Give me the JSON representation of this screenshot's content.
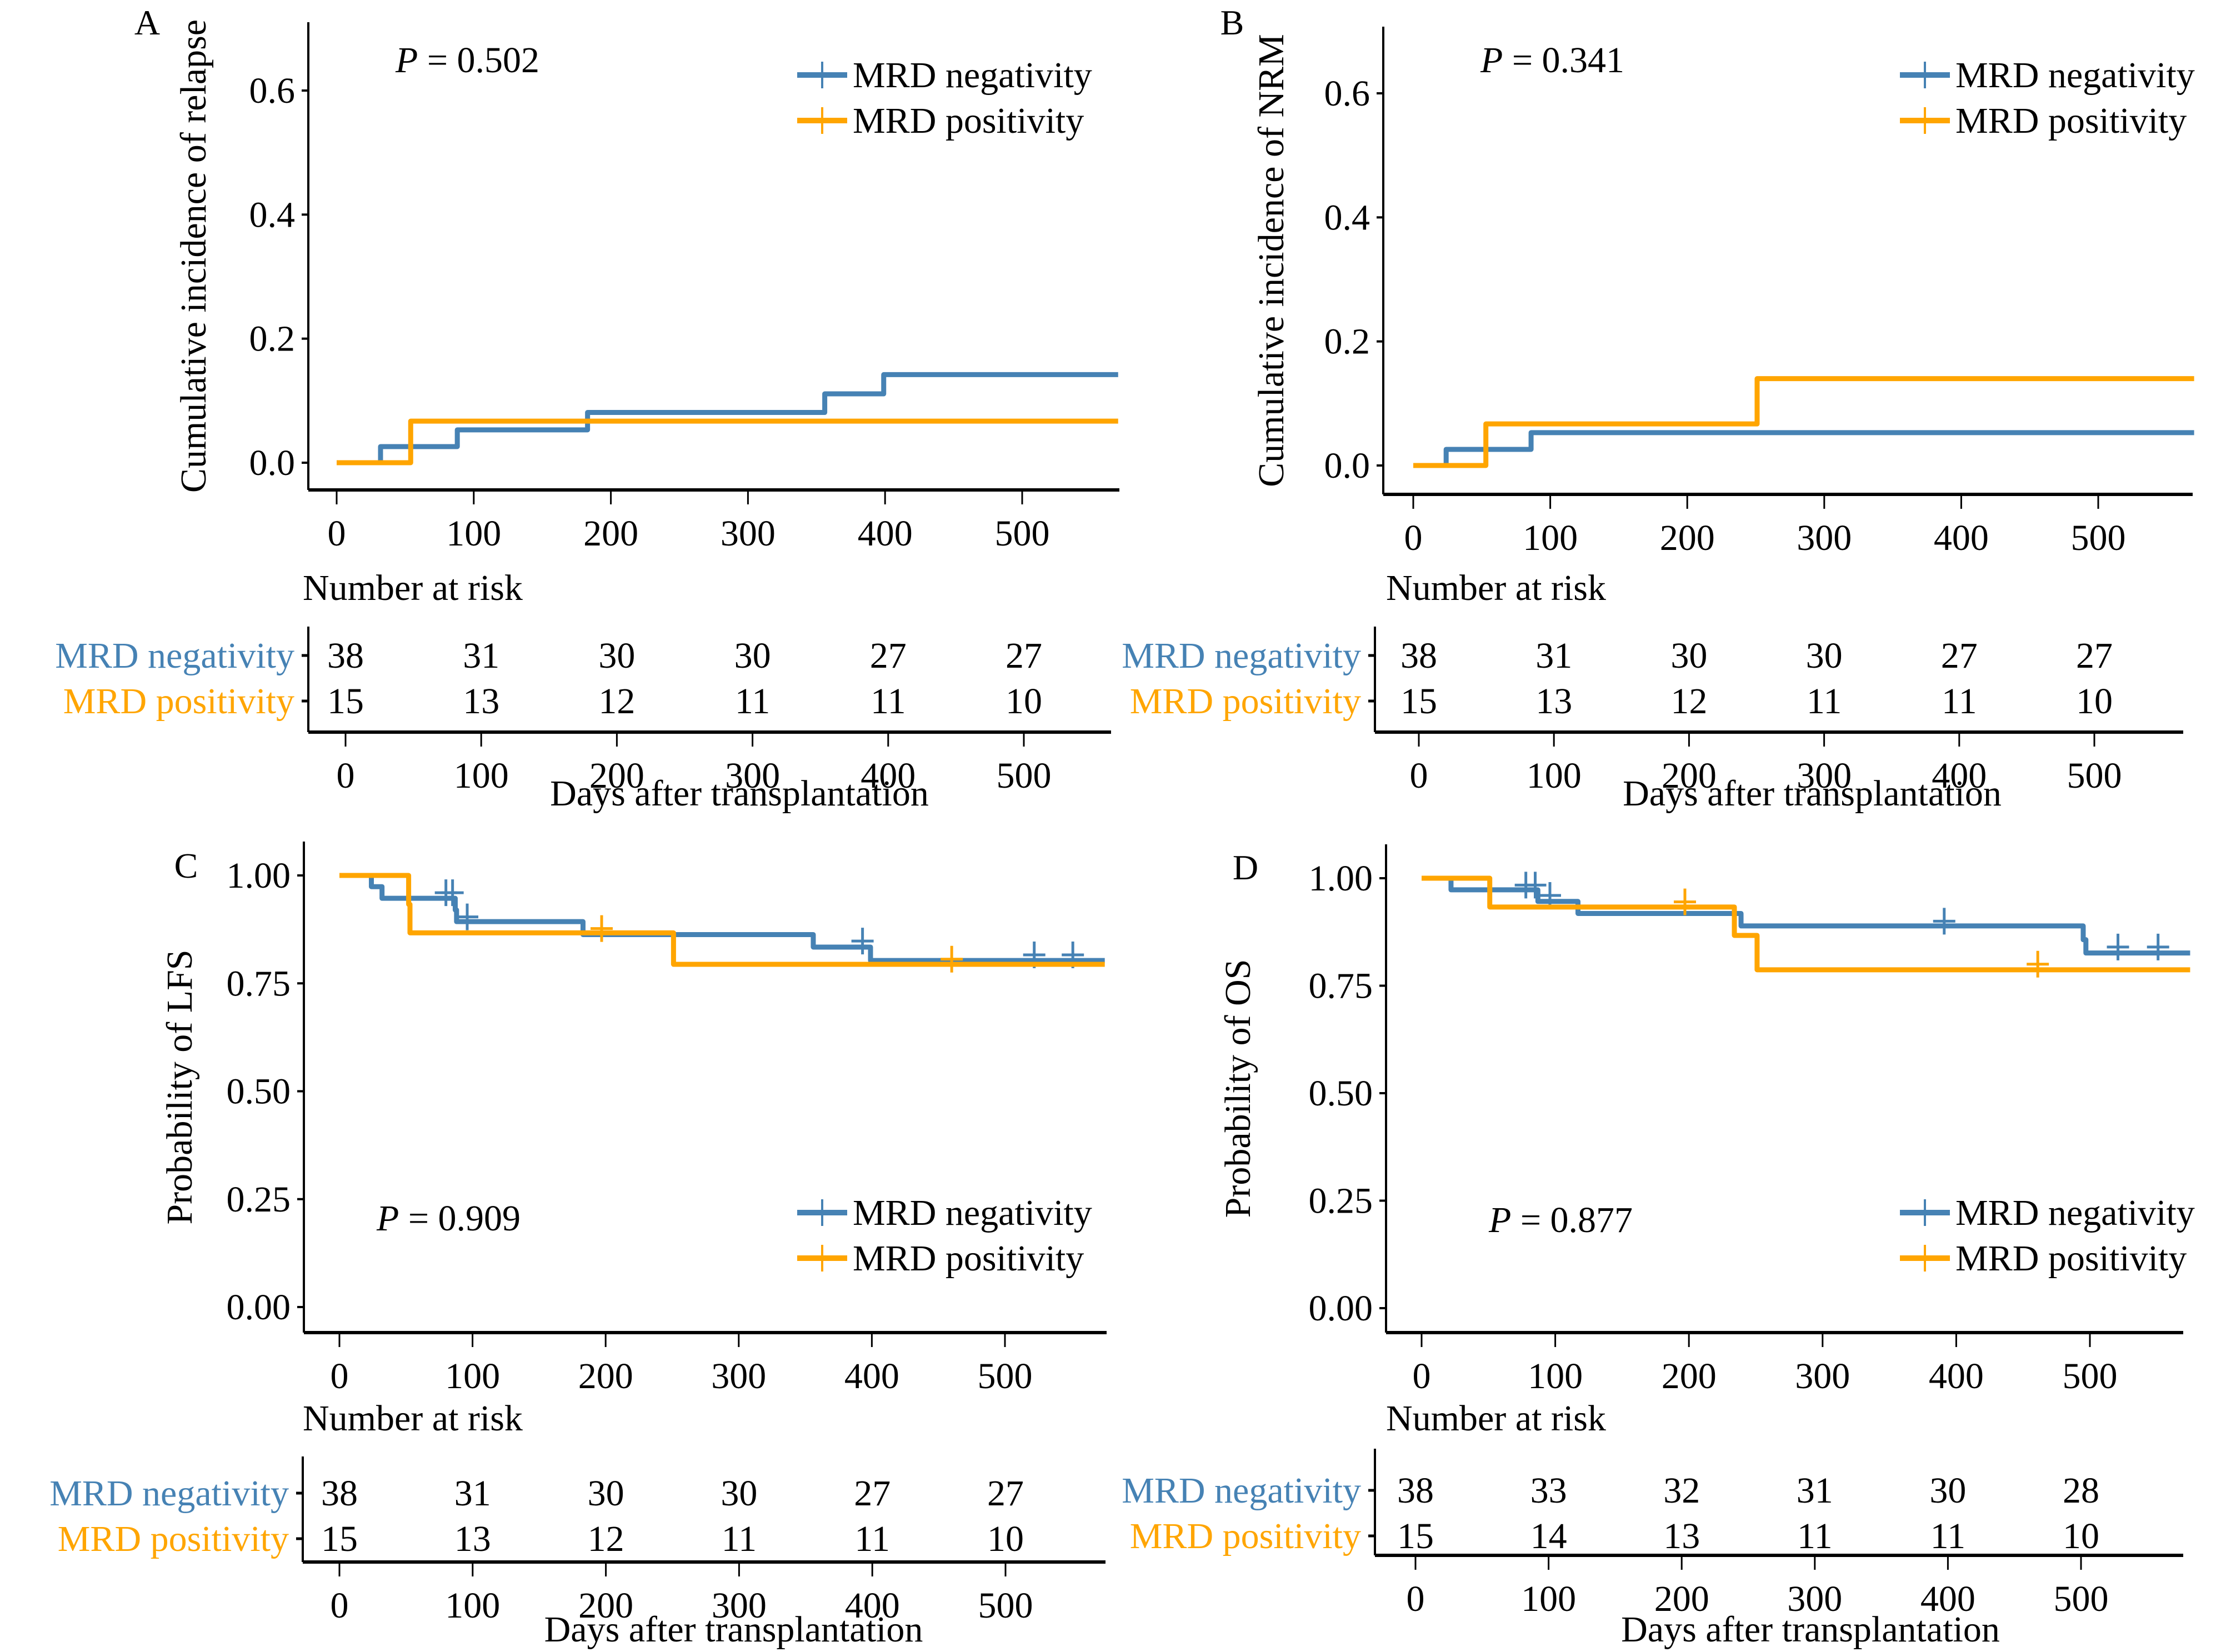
{
  "colors": {
    "negativity": "#4682B4",
    "positivity": "#FFA500",
    "axis": "#000000"
  },
  "chart_data": [
    {
      "panel": "A",
      "type": "line",
      "subtype": "step",
      "ylabel": "Cumulative incidence of relapse",
      "xlabel": "Days after transplantation",
      "xlim": [
        0,
        570
      ],
      "ylim": [
        -0.04,
        0.7
      ],
      "xticks": [
        0,
        100,
        200,
        300,
        400,
        500
      ],
      "yticks": [
        0.0,
        0.2,
        0.4,
        0.6
      ],
      "ytick_labels": [
        "0.0",
        "0.2",
        "0.4",
        "0.6"
      ],
      "pvalue_label": "P",
      "pvalue_text": " = 0.502",
      "legend_position": "top-right",
      "series": [
        {
          "name": "MRD negativity",
          "color_key": "negativity",
          "steps": [
            [
              0,
              0
            ],
            [
              32,
              0.026
            ],
            [
              88,
              0.053
            ],
            [
              183,
              0.081
            ],
            [
              356,
              0.111
            ],
            [
              399,
              0.142
            ],
            [
              570,
              0.142
            ]
          ],
          "censors": []
        },
        {
          "name": "MRD positivity",
          "color_key": "positivity",
          "steps": [
            [
              0,
              0
            ],
            [
              54,
              0.067
            ],
            [
              570,
              0.067
            ]
          ],
          "censors": []
        }
      ],
      "risk_table": {
        "title": "Number at risk",
        "rows": [
          {
            "name": "MRD negativity",
            "color_key": "negativity",
            "values": [
              38,
              31,
              30,
              30,
              27,
              27
            ]
          },
          {
            "name": "MRD positivity",
            "color_key": "positivity",
            "values": [
              15,
              13,
              12,
              11,
              11,
              10
            ]
          }
        ]
      }
    },
    {
      "panel": "B",
      "type": "line",
      "subtype": "step",
      "ylabel": "Cumulative incidence of NRM",
      "xlabel": "Days after transplantation",
      "xlim": [
        0,
        570
      ],
      "ylim": [
        -0.04,
        0.7
      ],
      "xticks": [
        0,
        100,
        200,
        300,
        400,
        500
      ],
      "yticks": [
        0.0,
        0.2,
        0.4,
        0.6
      ],
      "ytick_labels": [
        "0.0",
        "0.2",
        "0.4",
        "0.6"
      ],
      "pvalue_label": "P",
      "pvalue_text": " = 0.341",
      "legend_position": "top-right",
      "series": [
        {
          "name": "MRD negativity",
          "color_key": "negativity",
          "steps": [
            [
              0,
              0
            ],
            [
              24,
              0.026
            ],
            [
              86,
              0.053
            ],
            [
              570,
              0.053
            ]
          ],
          "censors": []
        },
        {
          "name": "MRD positivity",
          "color_key": "positivity",
          "steps": [
            [
              0,
              0
            ],
            [
              53,
              0.067
            ],
            [
              251,
              0.14
            ],
            [
              570,
              0.14
            ]
          ],
          "censors": []
        }
      ],
      "risk_table": {
        "title": "Number at risk",
        "rows": [
          {
            "name": "MRD negativity",
            "color_key": "negativity",
            "values": [
              38,
              31,
              30,
              30,
              27,
              27
            ]
          },
          {
            "name": "MRD positivity",
            "color_key": "positivity",
            "values": [
              15,
              13,
              12,
              11,
              11,
              10
            ]
          }
        ]
      }
    },
    {
      "panel": "C",
      "type": "line",
      "subtype": "step",
      "ylabel": "Probability of LFS",
      "xlabel": "Days after transplantation",
      "xlim": [
        0,
        575
      ],
      "ylim": [
        -0.06,
        1.05
      ],
      "xticks": [
        0,
        100,
        200,
        300,
        400,
        500
      ],
      "yticks": [
        0.0,
        0.25,
        0.5,
        0.75,
        1.0
      ],
      "ytick_labels": [
        "0.00",
        "0.25",
        "0.50",
        "0.75",
        "1.00"
      ],
      "pvalue_label": "P",
      "pvalue_text": " = 0.909",
      "legend_position": "bottom-right",
      "series": [
        {
          "name": "MRD negativity",
          "color_key": "negativity",
          "steps": [
            [
              0,
              1.0
            ],
            [
              24,
              0.974
            ],
            [
              32,
              0.947
            ],
            [
              87,
              0.92
            ],
            [
              88,
              0.893
            ],
            [
              183,
              0.863
            ],
            [
              356,
              0.834
            ],
            [
              399,
              0.803
            ],
            [
              575,
              0.803
            ]
          ],
          "censors": [
            [
              80,
              0.96
            ],
            [
              85,
              0.96
            ],
            [
              96,
              0.904
            ],
            [
              393,
              0.848
            ],
            [
              522,
              0.816
            ],
            [
              551,
              0.816
            ]
          ]
        },
        {
          "name": "MRD positivity",
          "color_key": "positivity",
          "steps": [
            [
              0,
              1.0
            ],
            [
              52,
              0.933
            ],
            [
              53,
              0.867
            ],
            [
              251,
              0.794
            ],
            [
              575,
              0.794
            ]
          ],
          "censors": [
            [
              197,
              0.877
            ],
            [
              460,
              0.806
            ]
          ]
        }
      ],
      "risk_table": {
        "title": "Number at risk",
        "rows": [
          {
            "name": "MRD negativity",
            "color_key": "negativity",
            "values": [
              38,
              31,
              30,
              30,
              27,
              27
            ]
          },
          {
            "name": "MRD positivity",
            "color_key": "positivity",
            "values": [
              15,
              13,
              12,
              11,
              11,
              10
            ]
          }
        ]
      }
    },
    {
      "panel": "D",
      "type": "line",
      "subtype": "step",
      "ylabel": "Probability of OS",
      "xlabel": "Days after transplantation",
      "xlim": [
        0,
        575
      ],
      "ylim": [
        -0.06,
        1.05
      ],
      "xticks": [
        0,
        100,
        200,
        300,
        400,
        500
      ],
      "yticks": [
        0.0,
        0.25,
        0.5,
        0.75,
        1.0
      ],
      "ytick_labels": [
        "0.00",
        "0.25",
        "0.50",
        "0.75",
        "1.00"
      ],
      "pvalue_label": "P",
      "pvalue_text": " = 0.877",
      "legend_position": "bottom-right",
      "series": [
        {
          "name": "MRD negativity",
          "color_key": "negativity",
          "steps": [
            [
              0,
              1.0
            ],
            [
              22,
              0.973
            ],
            [
              87,
              0.946
            ],
            [
              117,
              0.918
            ],
            [
              239,
              0.889
            ],
            [
              495,
              0.857
            ],
            [
              497,
              0.826
            ],
            [
              575,
              0.826
            ]
          ],
          "censors": [
            [
              78,
              0.984
            ],
            [
              85,
              0.984
            ],
            [
              96,
              0.96
            ],
            [
              391,
              0.9
            ],
            [
              521,
              0.84
            ],
            [
              551,
              0.84
            ]
          ]
        },
        {
          "name": "MRD positivity",
          "color_key": "positivity",
          "steps": [
            [
              0,
              1.0
            ],
            [
              51,
              0.933
            ],
            [
              234,
              0.867
            ],
            [
              251,
              0.787
            ],
            [
              575,
              0.787
            ]
          ],
          "censors": [
            [
              197,
              0.945
            ],
            [
              461,
              0.8
            ]
          ]
        }
      ],
      "risk_table": {
        "title": "Number at risk",
        "rows": [
          {
            "name": "MRD negativity",
            "color_key": "negativity",
            "values": [
              38,
              33,
              32,
              31,
              30,
              28
            ]
          },
          {
            "name": "MRD positivity",
            "color_key": "positivity",
            "values": [
              15,
              14,
              13,
              11,
              11,
              10
            ]
          }
        ]
      }
    }
  ]
}
